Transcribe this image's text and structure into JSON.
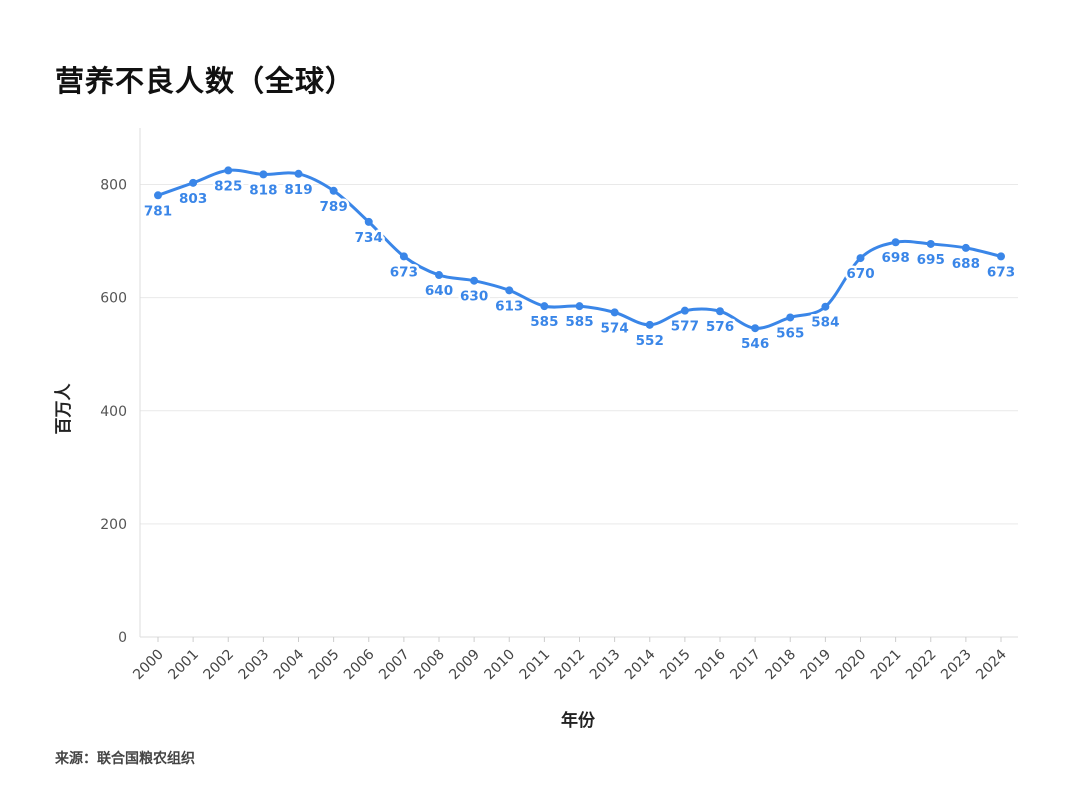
{
  "chart_data": {
    "type": "line",
    "title": "营养不良人数（全球）",
    "xlabel": "年份",
    "ylabel": "百万人",
    "source": "来源：联合国粮农组织",
    "ylim": [
      0,
      900
    ],
    "yticks": [
      0,
      200,
      400,
      600,
      800
    ],
    "grid": true,
    "line_color": "#3a86e8",
    "categories": [
      "2000",
      "2001",
      "2002",
      "2003",
      "2004",
      "2005",
      "2006",
      "2007",
      "2008",
      "2009",
      "2010",
      "2011",
      "2012",
      "2013",
      "2014",
      "2015",
      "2016",
      "2017",
      "2018",
      "2019",
      "2020",
      "2021",
      "2022",
      "2023",
      "2024"
    ],
    "series": [
      {
        "values": [
          781,
          803,
          825,
          818,
          819,
          789,
          734,
          673,
          640,
          630,
          613,
          585,
          585,
          574,
          552,
          577,
          576,
          546,
          565,
          584,
          670,
          698,
          695,
          688,
          673
        ]
      }
    ]
  }
}
